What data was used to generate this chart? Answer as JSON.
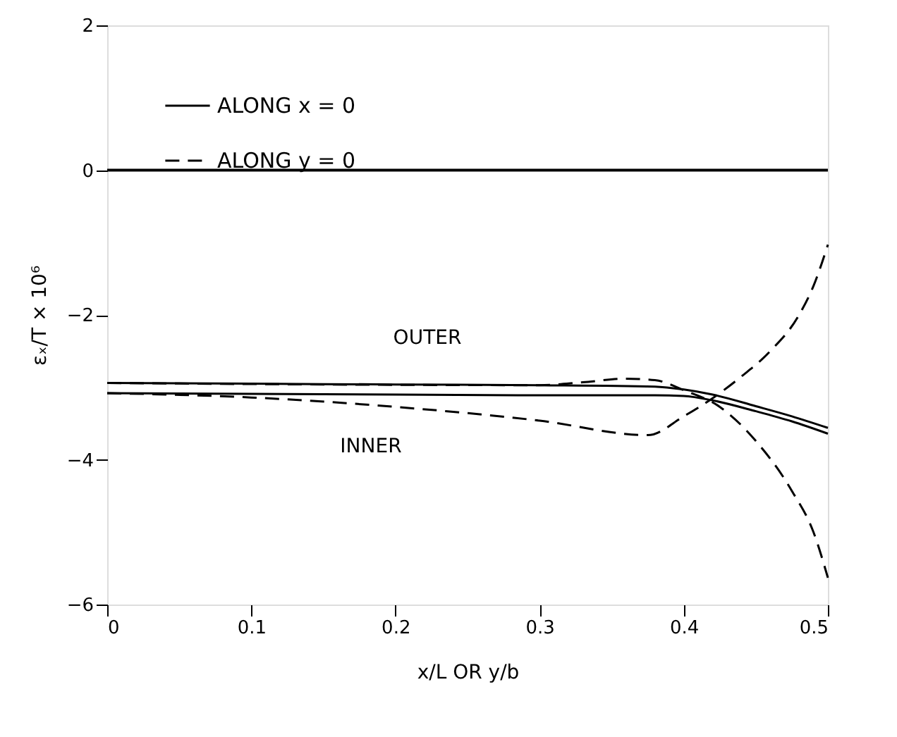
{
  "chart_data": {
    "type": "line",
    "xlabel": "x/L OR y/b",
    "ylabel": "εₓ/T × 10⁶",
    "xlim": [
      0,
      0.5
    ],
    "xticks": [
      0,
      0.1,
      0.2,
      0.3,
      0.4,
      0.5
    ],
    "ylim": [
      -6,
      2
    ],
    "yticks": [
      -6,
      -4,
      -2,
      0,
      2
    ],
    "grid": false,
    "legend": "top left",
    "marker": "none",
    "series": [
      {
        "name": "ALONG x = 0",
        "color": "#000000",
        "line_style": "solid",
        "x": [
          0,
          0.1,
          0.2,
          0.3,
          0.38,
          0.4,
          0.42,
          0.45,
          0.475,
          0.5
        ],
        "values": [
          -2.94,
          -2.95,
          -2.96,
          -2.97,
          -2.99,
          -3.03,
          -3.1,
          -3.26,
          -3.4,
          -3.56
        ]
      },
      {
        "color": "#000000",
        "line_style": "solid",
        "x": [
          0,
          0.1,
          0.2,
          0.3,
          0.38,
          0.4,
          0.42,
          0.45,
          0.475,
          0.5
        ],
        "values": [
          -3.08,
          -3.09,
          -3.1,
          -3.11,
          -3.11,
          -3.12,
          -3.18,
          -3.33,
          -3.47,
          -3.64
        ]
      },
      {
        "name": "ALONG y = 0",
        "color": "#000000",
        "line_style": "dashed",
        "x": [
          0,
          0.1,
          0.2,
          0.3,
          0.375,
          0.4,
          0.42,
          0.44,
          0.46,
          0.48,
          0.49,
          0.5
        ],
        "values": [
          -3.08,
          -3.14,
          -3.27,
          -3.46,
          -3.66,
          -3.4,
          -3.15,
          -2.85,
          -2.5,
          -2.0,
          -1.6,
          -1.03
        ]
      },
      {
        "color": "#000000",
        "line_style": "dashed",
        "x": [
          0,
          0.3,
          0.33,
          0.36,
          0.38,
          0.4,
          0.425,
          0.45,
          0.475,
          0.49,
          0.5
        ],
        "values": [
          -2.94,
          -2.97,
          -2.93,
          -2.88,
          -2.9,
          -3.04,
          -3.27,
          -3.74,
          -4.43,
          -5.0,
          -5.63
        ]
      }
    ],
    "ref_lines": [
      {
        "axis": "y",
        "value": 0,
        "color": "#000000",
        "line_style": "solid"
      }
    ],
    "annotations": [
      "OUTER",
      "INNER"
    ]
  }
}
